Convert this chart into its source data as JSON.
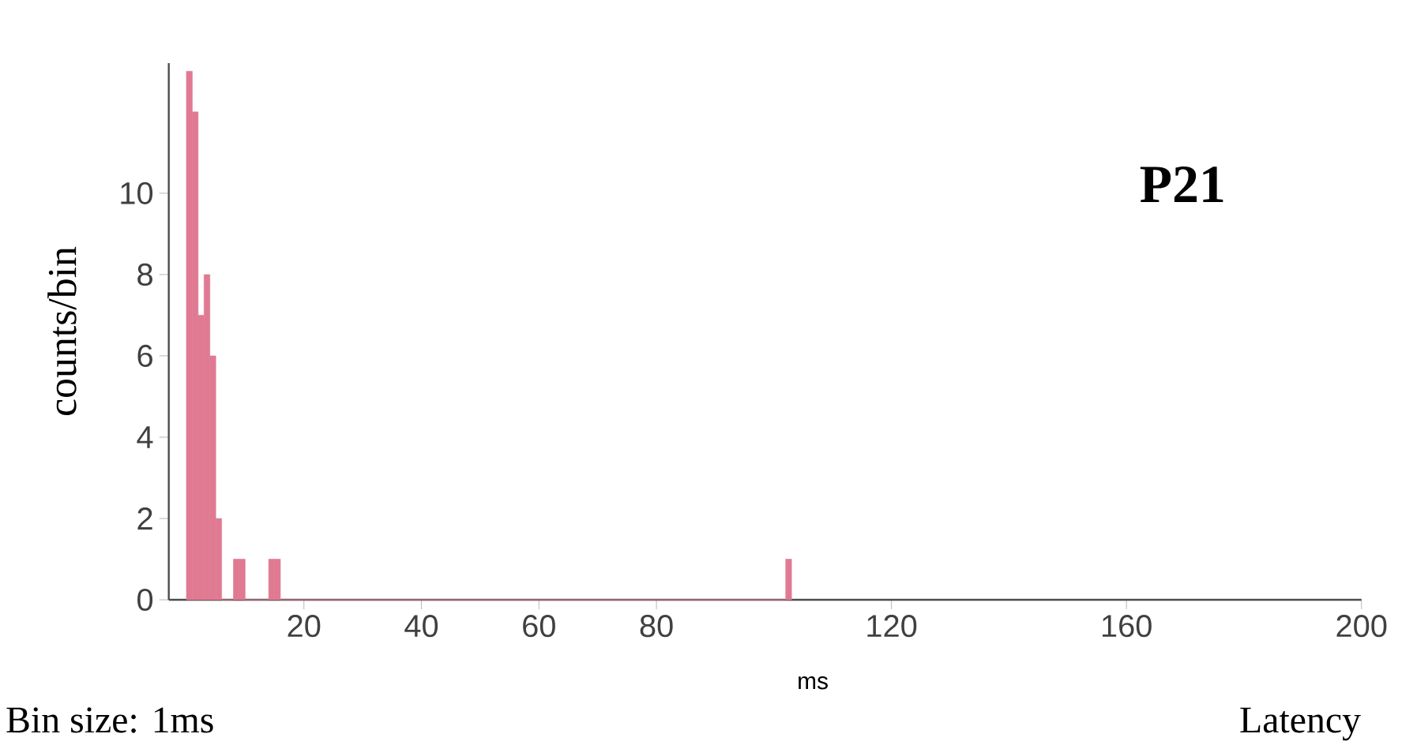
{
  "chart_data": {
    "type": "histogram",
    "title": "P21",
    "ylabel": "counts/bin",
    "xlabel": "ms",
    "annotations": [
      "Bin size: 1ms",
      "Latency"
    ],
    "bins": [
      0,
      1,
      2,
      3,
      4,
      5,
      6,
      8,
      9,
      10,
      14,
      15,
      16,
      102,
      103
    ],
    "values": [
      13,
      12,
      7,
      8,
      6,
      2,
      0,
      1,
      1,
      0,
      1,
      1,
      0,
      1
    ],
    "color": "#e07a92",
    "xlim": [
      -3,
      200
    ],
    "xticks": [
      20,
      40,
      60,
      80,
      120,
      160,
      200
    ],
    "ylim": [
      0,
      13.2
    ],
    "yticks": [
      0,
      2,
      4,
      6,
      8,
      10
    ],
    "grid": false
  }
}
